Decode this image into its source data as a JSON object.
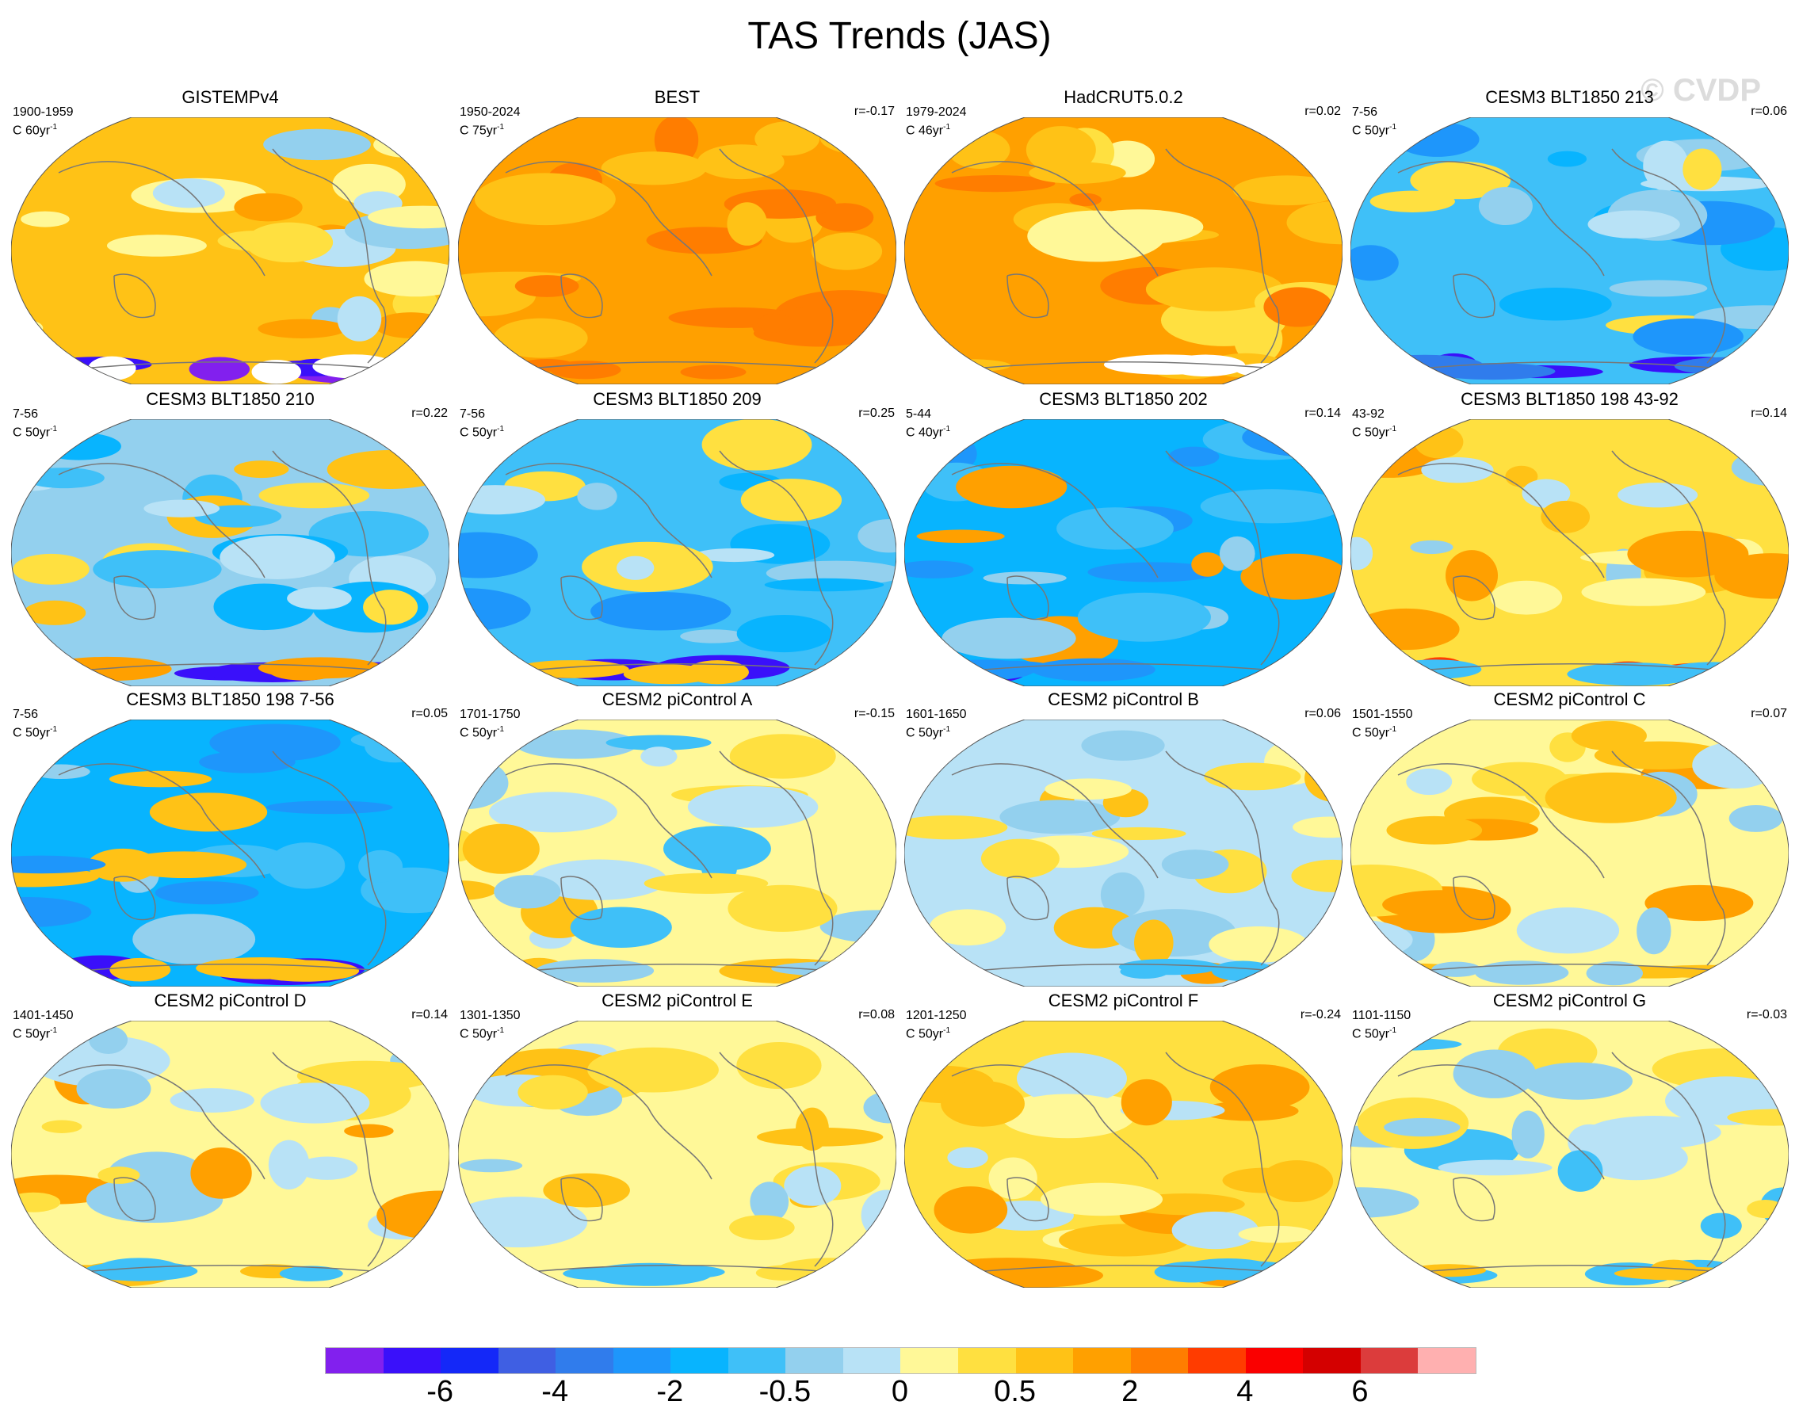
{
  "chart_data": {
    "type": "heatmap",
    "title": "TAS Trends (JAS)",
    "watermark": "© CVDP",
    "colorbar": {
      "colors": [
        "#8220ee",
        "#3a10fa",
        "#1428f8",
        "#3f5fe3",
        "#307cec",
        "#1e96fb",
        "#08b4fe",
        "#3fc0f8",
        "#93d0ee",
        "#b8e2f6",
        "#fff898",
        "#ffe040",
        "#ffc216",
        "#ffa000",
        "#ff7d00",
        "#ff3c00",
        "#fa0000",
        "#d40000",
        "#dc3c3c",
        "#ffb0b0"
      ],
      "labels": [
        "-6",
        "-4",
        "-2",
        "-0.5",
        "0",
        "0.5",
        "2",
        "4",
        "6"
      ],
      "label_boundaries": [
        2,
        4,
        6,
        8,
        10,
        12,
        14,
        16,
        18
      ]
    },
    "panels": [
      {
        "title": "GISTEMPv4",
        "period": "1900-1959",
        "scale": "C 60yr",
        "exp": "-1",
        "r": "",
        "base": "#ffc216",
        "blobs": [
          "#fff898",
          "#ffa000",
          "#b8e2f6",
          "#fff898",
          "#93d0ee",
          "#ffe040"
        ],
        "south": [
          "#8220ee",
          "#3a10fa",
          "#ffffff"
        ]
      },
      {
        "title": "BEST",
        "period": "1950-2024",
        "scale": "C 75yr",
        "exp": "-1",
        "r": "r=-0.17",
        "base": "#ffa000",
        "blobs": [
          "#ffc216",
          "#ff7d00",
          "#ffc216",
          "#ff7d00"
        ],
        "south": [
          "#ff7d00"
        ]
      },
      {
        "title": "HadCRUT5.0.2",
        "period": "1979-2024",
        "scale": "C 46yr",
        "exp": "-1",
        "r": "r=0.02",
        "base": "#ffa000",
        "blobs": [
          "#ffc216",
          "#ff7d00",
          "#ffe040",
          "#fff898",
          "#ffc216"
        ],
        "south": [
          "#ffc216",
          "#ffffff"
        ]
      },
      {
        "title": "CESM3 BLT1850 213",
        "period": "7-56",
        "scale": "C 50yr",
        "exp": "-1",
        "r": "r=0.06",
        "base": "#3fc0f8",
        "blobs": [
          "#08b4fe",
          "#93d0ee",
          "#1e96fb",
          "#ffe040",
          "#b8e2f6"
        ],
        "south": [
          "#3a10fa",
          "#307cec"
        ]
      },
      {
        "title": "CESM3 BLT1850 210",
        "period": "7-56",
        "scale": "C 50yr",
        "exp": "-1",
        "r": "r=0.22",
        "base": "#93d0ee",
        "blobs": [
          "#3fc0f8",
          "#b8e2f6",
          "#08b4fe",
          "#ffe040",
          "#ffc216"
        ],
        "south": [
          "#3a10fa",
          "#ffa000"
        ]
      },
      {
        "title": "CESM3 BLT1850 209",
        "period": "7-56",
        "scale": "C 50yr",
        "exp": "-1",
        "r": "r=0.25",
        "base": "#3fc0f8",
        "blobs": [
          "#93d0ee",
          "#08b4fe",
          "#ffe040",
          "#1e96fb",
          "#b8e2f6"
        ],
        "south": [
          "#3a10fa",
          "#ffc216"
        ]
      },
      {
        "title": "CESM3 BLT1850 202",
        "period": "5-44",
        "scale": "C 40yr",
        "exp": "-1",
        "r": "r=0.14",
        "base": "#08b4fe",
        "blobs": [
          "#1e96fb",
          "#3fc0f8",
          "#ffa000",
          "#93d0ee"
        ],
        "south": [
          "#3a10fa",
          "#1e96fb"
        ]
      },
      {
        "title": "CESM3 BLT1850 198 43-92",
        "period": "43-92",
        "scale": "C 50yr",
        "exp": "-1",
        "r": "r=0.14",
        "base": "#ffe040",
        "blobs": [
          "#ffa000",
          "#fff898",
          "#b8e2f6",
          "#ffc216",
          "#93d0ee"
        ],
        "south": [
          "#ff3c00",
          "#3fc0f8"
        ]
      },
      {
        "title": "CESM3 BLT1850 198 7-56",
        "period": "7-56",
        "scale": "C 50yr",
        "exp": "-1",
        "r": "r=0.05",
        "base": "#08b4fe",
        "blobs": [
          "#3fc0f8",
          "#1e96fb",
          "#ffc216",
          "#93d0ee"
        ],
        "south": [
          "#3a10fa",
          "#ffc216"
        ]
      },
      {
        "title": "CESM2 piControl A",
        "period": "1701-1750",
        "scale": "C 50yr",
        "exp": "-1",
        "r": "r=-0.15",
        "base": "#fff898",
        "blobs": [
          "#b8e2f6",
          "#ffe040",
          "#ffc216",
          "#93d0ee",
          "#3fc0f8"
        ],
        "south": [
          "#ffc216",
          "#93d0ee"
        ]
      },
      {
        "title": "CESM2 piControl B",
        "period": "1601-1650",
        "scale": "C 50yr",
        "exp": "-1",
        "r": "r=0.06",
        "base": "#b8e2f6",
        "blobs": [
          "#fff898",
          "#ffe040",
          "#ffc216",
          "#93d0ee"
        ],
        "south": [
          "#ffa000",
          "#3fc0f8"
        ]
      },
      {
        "title": "CESM2 piControl C",
        "period": "1501-1550",
        "scale": "C 50yr",
        "exp": "-1",
        "r": "r=0.07",
        "base": "#fff898",
        "blobs": [
          "#ffc216",
          "#ffa000",
          "#b8e2f6",
          "#93d0ee",
          "#ffe040"
        ],
        "south": [
          "#ffc216",
          "#93d0ee"
        ]
      },
      {
        "title": "CESM2 piControl D",
        "period": "1401-1450",
        "scale": "C 50yr",
        "exp": "-1",
        "r": "r=0.14",
        "base": "#fff898",
        "blobs": [
          "#b8e2f6",
          "#ffe040",
          "#ffa000",
          "#93d0ee"
        ],
        "south": [
          "#ffc216",
          "#3fc0f8"
        ]
      },
      {
        "title": "CESM2 piControl E",
        "period": "1301-1350",
        "scale": "C 50yr",
        "exp": "-1",
        "r": "r=0.08",
        "base": "#fff898",
        "blobs": [
          "#b8e2f6",
          "#ffe040",
          "#ffc216",
          "#93d0ee"
        ],
        "south": [
          "#ffe040",
          "#3fc0f8"
        ]
      },
      {
        "title": "CESM2 piControl F",
        "period": "1201-1250",
        "scale": "C 50yr",
        "exp": "-1",
        "r": "r=-0.24",
        "base": "#ffe040",
        "blobs": [
          "#fff898",
          "#ffc216",
          "#ffa000",
          "#b8e2f6"
        ],
        "south": [
          "#ffa000",
          "#3fc0f8"
        ]
      },
      {
        "title": "CESM2 piControl G",
        "period": "1101-1150",
        "scale": "C 50yr",
        "exp": "-1",
        "r": "r=-0.03",
        "base": "#fff898",
        "blobs": [
          "#b8e2f6",
          "#93d0ee",
          "#ffe040",
          "#3fc0f8"
        ],
        "south": [
          "#3fc0f8",
          "#ffc216"
        ]
      }
    ]
  }
}
